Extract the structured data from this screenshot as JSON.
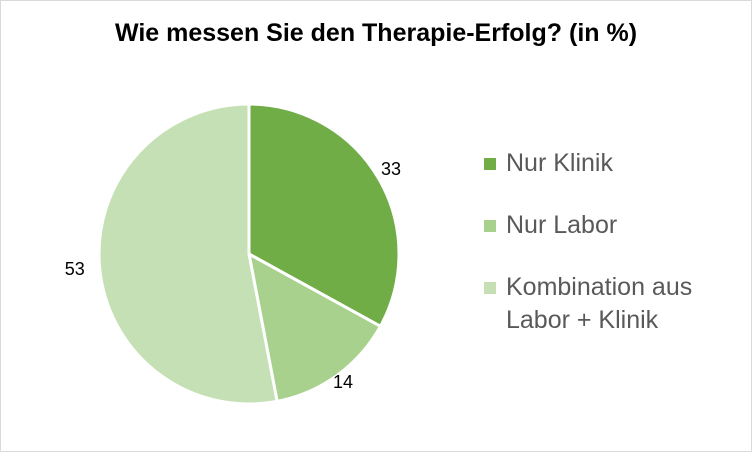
{
  "chart_data": {
    "type": "pie",
    "title": "Wie messen Sie den Therapie-Erfolg? (in %)",
    "categories": [
      "Nur Klinik",
      "Nur Labor",
      "Kombination aus Labor + Klinik"
    ],
    "values": [
      33,
      14,
      53
    ],
    "data_labels": [
      "33",
      "14",
      "53"
    ],
    "colors": [
      "#70ad47",
      "#a9d18e",
      "#c5e0b4"
    ],
    "legend_position": "right",
    "start_angle": "12 o'clock, clockwise"
  },
  "legend": [
    {
      "label": "Nur Klinik"
    },
    {
      "label": "Nur Labor"
    },
    {
      "label": "Kombination aus Labor + Klinik"
    }
  ]
}
